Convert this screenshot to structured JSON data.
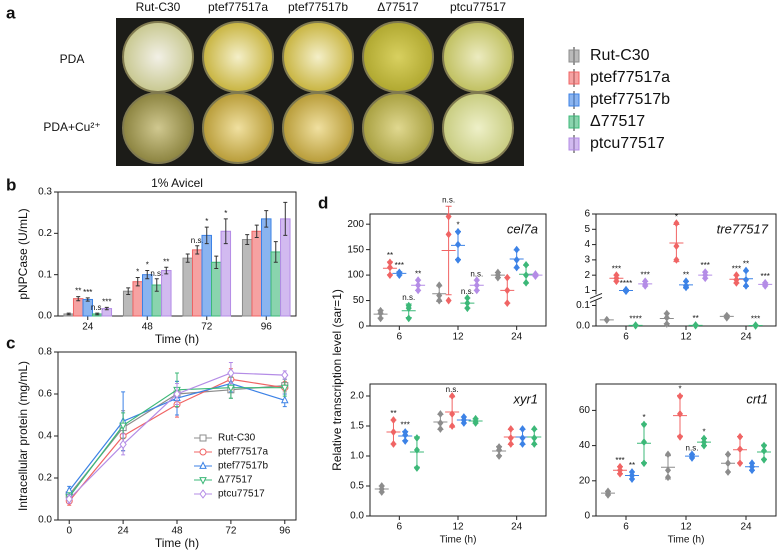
{
  "panel_labels": [
    "a",
    "b",
    "c",
    "d"
  ],
  "photos": {
    "columns": [
      "Rut-C30",
      "ptef77517a",
      "ptef77517b",
      "Δ77517",
      "ptcu77517"
    ],
    "rows": [
      "PDA",
      "PDA+Cu²⁺"
    ]
  },
  "legend": [
    {
      "name": "Rut-C30",
      "color": "#8c8c8c"
    },
    {
      "name": "ptef77517a",
      "color": "#f06464"
    },
    {
      "name": "ptef77517b",
      "color": "#3c82e6"
    },
    {
      "name": "Δ77517",
      "color": "#3cb878"
    },
    {
      "name": "ptcu77517",
      "color": "#b48ce6"
    }
  ],
  "d_axis_label": "Relative transcription level (sar=1)",
  "chart_data": [
    {
      "type": "bar",
      "title": "1% Avicel",
      "x_label": "Time (h)",
      "y_label": "pNPCase (U/mL)",
      "categories": [
        "24",
        "48",
        "72",
        "96"
      ],
      "ylim": [
        0,
        0.3
      ],
      "yticks": [
        {
          "value": 0,
          "label": "0.0"
        },
        0.1,
        0.2,
        0.3
      ],
      "series": [
        {
          "values": [
            0.005,
            0.06,
            0.14,
            0.185
          ],
          "errors": [
            0.002,
            0.008,
            0.01,
            0.012
          ]
        },
        {
          "values": [
            0.042,
            0.083,
            0.16,
            0.205
          ],
          "errors": [
            0.005,
            0.01,
            0.01,
            0.015
          ],
          "sig": [
            "**",
            "*",
            "n.s.",
            null
          ]
        },
        {
          "values": [
            0.04,
            0.1,
            0.195,
            0.235
          ],
          "errors": [
            0.004,
            0.01,
            0.02,
            0.02
          ],
          "sig": [
            "***",
            "*",
            "*",
            null
          ]
        },
        {
          "values": [
            0.005,
            0.075,
            0.13,
            0.155
          ],
          "errors": [
            0.002,
            0.015,
            0.015,
            0.025
          ],
          "sig": [
            "n.s.",
            "n.s.",
            null,
            null
          ]
        },
        {
          "values": [
            0.018,
            0.11,
            0.205,
            0.235
          ],
          "errors": [
            0.003,
            0.008,
            0.03,
            0.04
          ],
          "sig": [
            "***",
            "**",
            "*",
            null
          ]
        }
      ]
    },
    {
      "type": "line",
      "x_label": "Time (h)",
      "y_label": "Intracellular protein (mg/mL)",
      "legend": "lower right",
      "x": [
        0,
        24,
        48,
        72,
        96
      ],
      "xlim": [
        -5,
        101
      ],
      "xticks": [
        0,
        24,
        48,
        72,
        96
      ],
      "ylim": [
        0,
        0.8
      ],
      "yticks": [
        {
          "value": 0,
          "label": "0.0"
        },
        0.2,
        0.4,
        0.6,
        0.8
      ],
      "series": [
        {
          "marker": "square",
          "values": [
            0.12,
            0.44,
            0.6,
            0.62,
            0.64
          ],
          "errors": [
            0.02,
            0.08,
            0.06,
            0.04,
            0.03
          ]
        },
        {
          "marker": "circle",
          "values": [
            0.09,
            0.4,
            0.55,
            0.67,
            0.63
          ],
          "errors": [
            0.02,
            0.07,
            0.06,
            0.05,
            0.03
          ]
        },
        {
          "marker": "triangle-up",
          "values": [
            0.14,
            0.47,
            0.58,
            0.65,
            0.57
          ],
          "errors": [
            0.02,
            0.14,
            0.08,
            0.04,
            0.03
          ]
        },
        {
          "marker": "triangle-down",
          "values": [
            0.11,
            0.45,
            0.62,
            0.63,
            0.63
          ],
          "errors": [
            0.02,
            0.06,
            0.08,
            0.05,
            0.04
          ]
        },
        {
          "marker": "diamond",
          "values": [
            0.1,
            0.36,
            0.6,
            0.7,
            0.69
          ],
          "errors": [
            0.02,
            0.05,
            0.05,
            0.05,
            0.02
          ]
        }
      ]
    },
    {
      "type": "dot",
      "title": "cel7a",
      "categories": [
        "6",
        "12",
        "24"
      ],
      "ylim": [
        0,
        220
      ],
      "yticks": [
        0,
        50,
        100,
        150,
        200
      ],
      "series": [
        {
          "points": [
            [
              15,
              25,
              30
            ],
            [
              50,
              60,
              80
            ],
            [
              95,
              100,
              105
            ]
          ]
        },
        {
          "points": [
            [
              100,
              115,
              125
            ],
            [
              50,
              180,
              215
            ],
            [
              45,
              70,
              95
            ]
          ],
          "sig": [
            "**",
            "n.s.",
            null
          ]
        },
        {
          "points": [
            [
              100,
              105,
              105
            ],
            [
              130,
              160,
              185
            ],
            [
              115,
              130,
              150
            ]
          ],
          "sig": [
            "***",
            "*",
            null
          ]
        },
        {
          "points": [
            [
              15,
              35,
              40
            ],
            [
              35,
              45,
              55
            ],
            [
              85,
              100,
              120
            ]
          ],
          "sig": [
            "n.s.",
            "n.s.",
            null
          ]
        },
        {
          "points": [
            [
              70,
              80,
              90
            ],
            [
              70,
              80,
              90
            ],
            [
              98,
              100,
              102
            ]
          ],
          "sig": [
            "**",
            "n.s.",
            null
          ]
        }
      ]
    },
    {
      "type": "dot",
      "title": "tre77517",
      "categories": [
        "6",
        "12",
        "24"
      ],
      "ylim": [
        0,
        6
      ],
      "axis_break": [
        0.12,
        0.8
      ],
      "yticks": [
        {
          "value": 0,
          "label": "0.0"
        },
        0.1,
        1,
        2,
        3,
        4,
        5,
        6
      ],
      "series": [
        {
          "points": [
            [
              0.03,
              0.03,
              0.03
            ],
            [
              0.01,
              0.04,
              0.06
            ],
            [
              0.04,
              0.05,
              0.05
            ]
          ]
        },
        {
          "points": [
            [
              1.6,
              1.8,
              2.0
            ],
            [
              3.0,
              3.9,
              5.4
            ],
            [
              1.5,
              1.7,
              2.0
            ]
          ],
          "sig": [
            "***",
            "*",
            "***"
          ]
        },
        {
          "points": [
            [
              0.95,
              1.0,
              1.05
            ],
            [
              1.2,
              1.3,
              1.6
            ],
            [
              1.3,
              1.7,
              2.3
            ]
          ],
          "sig": [
            "****",
            "**",
            "**"
          ]
        },
        {
          "points": [
            [
              0.002,
              0.003,
              0.004
            ],
            [
              0.002,
              0.003,
              0.005
            ],
            [
              0.001,
              0.002,
              0.004
            ]
          ],
          "sig": [
            "****",
            "**",
            "***"
          ]
        },
        {
          "points": [
            [
              1.3,
              1.4,
              1.6
            ],
            [
              1.8,
              2.0,
              2.2
            ],
            [
              1.3,
              1.4,
              1.5
            ]
          ],
          "sig": [
            "***",
            "***",
            "***"
          ]
        }
      ]
    },
    {
      "type": "dot",
      "title": "xyr1",
      "x_label": "Time (h)",
      "categories": [
        "6",
        "12",
        "24"
      ],
      "ylim": [
        0,
        2.2
      ],
      "yticks": [
        {
          "value": 0,
          "label": "0.0"
        },
        0.5,
        {
          "value": 1,
          "label": "1.0"
        },
        1.5,
        {
          "value": 2,
          "label": "2.0"
        }
      ],
      "series": [
        {
          "points": [
            [
              0.4,
              0.45,
              0.5
            ],
            [
              1.45,
              1.55,
              1.7
            ],
            [
              1.0,
              1.1,
              1.15
            ]
          ]
        },
        {
          "points": [
            [
              1.2,
              1.4,
              1.6
            ],
            [
              1.5,
              1.7,
              2.0
            ],
            [
              1.2,
              1.3,
              1.45
            ]
          ],
          "sig": [
            "**",
            "n.s.",
            null
          ]
        },
        {
          "points": [
            [
              1.25,
              1.35,
              1.4
            ],
            [
              1.55,
              1.6,
              1.65
            ],
            [
              1.2,
              1.3,
              1.45
            ]
          ],
          "sig": [
            "***",
            null,
            null
          ]
        },
        {
          "points": [
            [
              0.8,
              1.1,
              1.3
            ],
            [
              1.55,
              1.58,
              1.62
            ],
            [
              1.2,
              1.3,
              1.45
            ]
          ]
        }
      ]
    },
    {
      "type": "dot",
      "title": "crt1",
      "x_label": "Time (h)",
      "categories": [
        "6",
        "12",
        "24"
      ],
      "ylim": [
        0,
        75
      ],
      "yticks": [
        0,
        20,
        40,
        60
      ],
      "series": [
        {
          "points": [
            [
              12,
              13,
              14
            ],
            [
              22,
              26,
              35
            ],
            [
              25,
              30,
              35
            ]
          ]
        },
        {
          "points": [
            [
              24,
              26,
              28
            ],
            [
              45,
              58,
              68
            ],
            [
              30,
              38,
              45
            ]
          ],
          "sig": [
            "***",
            "*",
            null
          ]
        },
        {
          "points": [
            [
              21,
              23,
              25
            ],
            [
              33,
              34,
              35
            ],
            [
              26,
              28,
              30
            ]
          ],
          "sig": [
            "**",
            "n.s.",
            null
          ]
        },
        {
          "points": [
            [
              30,
              42,
              52
            ],
            [
              40,
              42,
              44
            ],
            [
              32,
              37,
              40
            ]
          ],
          "sig": [
            "*",
            "*",
            null
          ]
        }
      ]
    }
  ]
}
